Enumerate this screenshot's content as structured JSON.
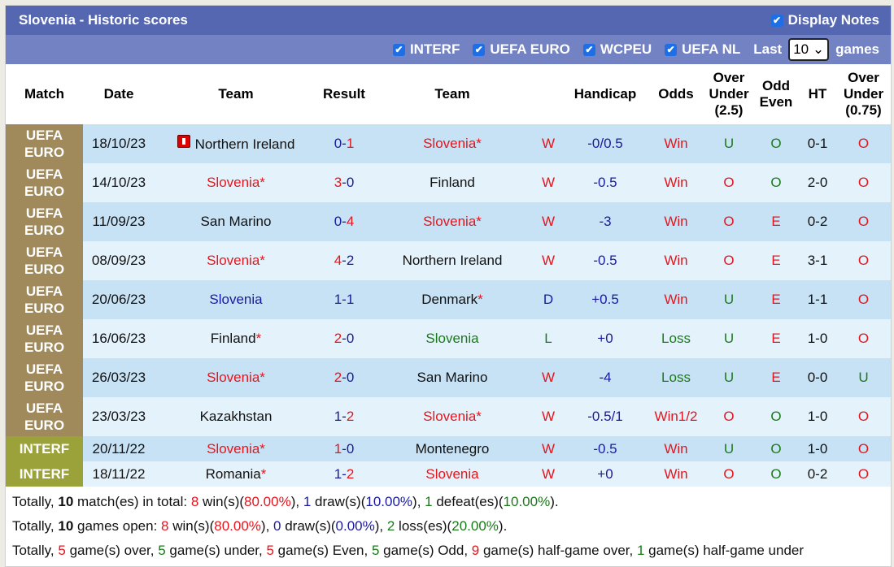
{
  "header": {
    "title": "Slovenia - Historic scores",
    "display_notes": "Display Notes"
  },
  "filters": {
    "items": [
      "INTERF",
      "UEFA EURO",
      "WCPEU",
      "UEFA NL"
    ],
    "last_label": "Last",
    "last_value": "10",
    "games_label": "games"
  },
  "columns": [
    "Match",
    "Date",
    "Team",
    "Result",
    "Team",
    "",
    "Handicap",
    "Odds",
    "Over Under (2.5)",
    "Odd Even",
    "HT",
    "Over Under (0.75)"
  ],
  "colors": {
    "uefa_euro": "#a08a5c",
    "interf": "#9ba23a",
    "red": "#e8141c",
    "blue": "#1a1aa0",
    "green": "#1a7a1a"
  },
  "rows": [
    {
      "match": "UEFA EURO",
      "date": "18/10/23",
      "home": "Northern Ireland",
      "home_flag": true,
      "home_color": "blk",
      "home_star": false,
      "score_home": "0",
      "score_away": "1",
      "sh_c": "blue",
      "sa_c": "red",
      "away": "Slovenia",
      "away_color": "red",
      "away_star": true,
      "wl": "W",
      "handicap": "-0/0.5",
      "odds": "Win",
      "ou": "U",
      "oe": "O",
      "ht": "0-1",
      "ou2": "O"
    },
    {
      "match": "UEFA EURO",
      "date": "14/10/23",
      "home": "Slovenia",
      "home_color": "red",
      "home_star": true,
      "score_home": "3",
      "score_away": "0",
      "sh_c": "red",
      "sa_c": "blue",
      "away": "Finland",
      "away_color": "blk",
      "away_star": false,
      "wl": "W",
      "handicap": "-0.5",
      "odds": "Win",
      "ou": "O",
      "oe": "O",
      "ht": "2-0",
      "ou2": "O"
    },
    {
      "match": "UEFA EURO",
      "date": "11/09/23",
      "home": "San Marino",
      "home_color": "blk",
      "home_star": false,
      "score_home": "0",
      "score_away": "4",
      "sh_c": "blue",
      "sa_c": "red",
      "away": "Slovenia",
      "away_color": "red",
      "away_star": true,
      "wl": "W",
      "handicap": "-3",
      "odds": "Win",
      "ou": "O",
      "oe": "E",
      "ht": "0-2",
      "ou2": "O"
    },
    {
      "match": "UEFA EURO",
      "date": "08/09/23",
      "home": "Slovenia",
      "home_color": "red",
      "home_star": true,
      "score_home": "4",
      "score_away": "2",
      "sh_c": "red",
      "sa_c": "blue",
      "away": "Northern Ireland",
      "away_color": "blk",
      "away_star": false,
      "wl": "W",
      "handicap": "-0.5",
      "odds": "Win",
      "ou": "O",
      "oe": "E",
      "ht": "3-1",
      "ou2": "O"
    },
    {
      "match": "UEFA EURO",
      "date": "20/06/23",
      "home": "Slovenia",
      "home_color": "blue",
      "home_star": false,
      "score_home": "1",
      "score_away": "1",
      "sh_c": "blue",
      "sa_c": "blue",
      "away": "Denmark",
      "away_color": "blk",
      "away_star": true,
      "wl": "D",
      "handicap": "+0.5",
      "odds": "Win",
      "ou": "U",
      "oe": "E",
      "ht": "1-1",
      "ou2": "O"
    },
    {
      "match": "UEFA EURO",
      "date": "16/06/23",
      "home": "Finland",
      "home_color": "blk",
      "home_star": true,
      "score_home": "2",
      "score_away": "0",
      "sh_c": "red",
      "sa_c": "blue",
      "away": "Slovenia",
      "away_color": "green",
      "away_star": false,
      "wl": "L",
      "handicap": "+0",
      "odds": "Loss",
      "ou": "U",
      "oe": "E",
      "ht": "1-0",
      "ou2": "O"
    },
    {
      "match": "UEFA EURO",
      "date": "26/03/23",
      "home": "Slovenia",
      "home_color": "red",
      "home_star": true,
      "score_home": "2",
      "score_away": "0",
      "sh_c": "red",
      "sa_c": "blue",
      "away": "San Marino",
      "away_color": "blk",
      "away_star": false,
      "wl": "W",
      "handicap": "-4",
      "odds": "Loss",
      "ou": "U",
      "oe": "E",
      "ht": "0-0",
      "ou2": "U"
    },
    {
      "match": "UEFA EURO",
      "date": "23/03/23",
      "home": "Kazakhstan",
      "home_color": "blk",
      "home_star": false,
      "score_home": "1",
      "score_away": "2",
      "sh_c": "blue",
      "sa_c": "red",
      "away": "Slovenia",
      "away_color": "red",
      "away_star": true,
      "wl": "W",
      "handicap": "-0.5/1",
      "odds": "Win1/2",
      "ou": "O",
      "oe": "O",
      "ht": "1-0",
      "ou2": "O"
    },
    {
      "match": "INTERF",
      "date": "20/11/22",
      "home": "Slovenia",
      "home_color": "red",
      "home_star": true,
      "score_home": "1",
      "score_away": "0",
      "sh_c": "red",
      "sa_c": "blue",
      "away": "Montenegro",
      "away_color": "blk",
      "away_star": false,
      "wl": "W",
      "handicap": "-0.5",
      "odds": "Win",
      "ou": "U",
      "oe": "O",
      "ht": "1-0",
      "ou2": "O"
    },
    {
      "match": "INTERF",
      "date": "18/11/22",
      "home": "Romania",
      "home_color": "blk",
      "home_star": true,
      "score_home": "1",
      "score_away": "2",
      "sh_c": "blue",
      "sa_c": "red",
      "away": "Slovenia",
      "away_color": "red",
      "away_star": false,
      "wl": "W",
      "handicap": "+0",
      "odds": "Win",
      "ou": "O",
      "oe": "O",
      "ht": "0-2",
      "ou2": "O"
    }
  ],
  "summary": [
    [
      [
        "Totally, ",
        ""
      ],
      [
        "10",
        "b"
      ],
      [
        " match(es) in total: ",
        ""
      ],
      [
        "8",
        "red"
      ],
      [
        " win(s)(",
        ""
      ],
      [
        "80.00%",
        "red"
      ],
      [
        "), ",
        ""
      ],
      [
        "1",
        "blue"
      ],
      [
        " draw(s)(",
        ""
      ],
      [
        "10.00%",
        "blue"
      ],
      [
        "), ",
        ""
      ],
      [
        "1",
        "green"
      ],
      [
        " defeat(es)(",
        ""
      ],
      [
        "10.00%",
        "green"
      ],
      [
        ").",
        ""
      ]
    ],
    [
      [
        "Totally, ",
        ""
      ],
      [
        "10",
        "b"
      ],
      [
        " games open: ",
        ""
      ],
      [
        "8",
        "red"
      ],
      [
        " win(s)(",
        ""
      ],
      [
        "80.00%",
        "red"
      ],
      [
        "), ",
        ""
      ],
      [
        "0",
        "blue"
      ],
      [
        " draw(s)(",
        ""
      ],
      [
        "0.00%",
        "blue"
      ],
      [
        "), ",
        ""
      ],
      [
        "2",
        "green"
      ],
      [
        " loss(es)(",
        ""
      ],
      [
        "20.00%",
        "green"
      ],
      [
        ").",
        ""
      ]
    ],
    [
      [
        "Totally, ",
        ""
      ],
      [
        "5",
        "red"
      ],
      [
        " game(s) over, ",
        ""
      ],
      [
        "5",
        "green"
      ],
      [
        " game(s) under, ",
        ""
      ],
      [
        "5",
        "red"
      ],
      [
        " game(s) Even, ",
        ""
      ],
      [
        "5",
        "green"
      ],
      [
        " game(s) Odd, ",
        ""
      ],
      [
        "9",
        "red"
      ],
      [
        " game(s) half-game over, ",
        ""
      ],
      [
        "1",
        "green"
      ],
      [
        " game(s) half-game under",
        ""
      ]
    ]
  ]
}
